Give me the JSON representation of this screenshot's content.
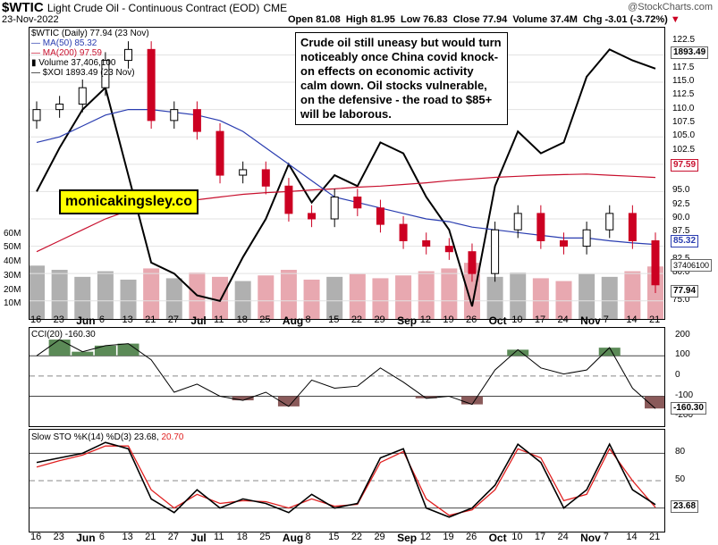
{
  "header": {
    "symbol": "$WTIC",
    "name": "Light Crude Oil - Continuous Contract (EOD)",
    "exchange": "CME",
    "date": "23-Nov-2022",
    "open": "Open 81.08",
    "high": "High 81.95",
    "low": "Low 76.83",
    "close": "Close 77.94",
    "volume": "Volume 37.4M",
    "chg": "Chg -3.01 (-3.72%)",
    "brand": "@StockCharts.com"
  },
  "legend": {
    "line1": "$WTIC (Daily) 77.94 (23 Nov)",
    "ma50": "MA(50) 85.32",
    "ma200": "MA(200) 97.59",
    "volume": "Volume 37,406,100",
    "xoi": "$XOI 1893.49 (23 Nov)"
  },
  "annotation": "Crude oil still uneasy but would turn noticeably once China covid knock-on effects on economic activity calm down. Oil stocks vulnerable, on the defensive - the road to $85+ will be laborous.",
  "watermark": "monicakingsley.co",
  "tags": {
    "xoi": "1893.49",
    "ma200": "97.59",
    "ma50": "85.32",
    "vol": "37406100",
    "close": "77.94",
    "cci": "-160.30",
    "sto": "23.68"
  },
  "price_axis": [
    "122.5",
    "117.5",
    "115.0",
    "112.5",
    "110.0",
    "107.5",
    "105.0",
    "102.5",
    "100.0",
    "95.0",
    "92.5",
    "90.0",
    "87.5",
    "82.5",
    "80.0",
    "75.0"
  ],
  "volume_axis": [
    "60M",
    "50M",
    "40M",
    "30M",
    "20M",
    "10M"
  ],
  "cci_axis": [
    "200",
    "100",
    "0",
    "-100",
    "-200"
  ],
  "sto_axis": [
    "80",
    "50",
    "20"
  ],
  "cci_label": "CCI(20) -160.30",
  "sto_label_a": "Slow STO %K(14) %D(3) 23.68,",
  "sto_label_b": "20.70",
  "x_labels": [
    "16",
    "23",
    "Jun",
    "6",
    "13",
    "21",
    "27",
    "Jul",
    "11",
    "18",
    "25",
    "Aug",
    "8",
    "15",
    "22",
    "29",
    "Sep",
    "12",
    "19",
    "26",
    "Oct",
    "10",
    "17",
    "24",
    "Nov",
    "7",
    "14",
    "21"
  ],
  "colors": {
    "up": "#000000",
    "down": "#cc0022",
    "ma50": "#2a3db0",
    "ma200": "#c8102e",
    "xoi": "#000000",
    "volume_up": "#b0b0b0",
    "volume_down": "#e8a8b0",
    "cci_pos": "#5b8a57",
    "cci_neg": "#8a5a5a",
    "sto_k": "#000000",
    "sto_d": "#e02020"
  },
  "chart_data": [
    {
      "type": "line",
      "title": "$WTIC (Daily)",
      "x": [
        "16",
        "23",
        "Jun",
        "6",
        "13",
        "21",
        "27",
        "Jul",
        "11",
        "18",
        "25",
        "Aug",
        "8",
        "15",
        "22",
        "29",
        "Sep",
        "12",
        "19",
        "26",
        "Oct",
        "10",
        "17",
        "24",
        "Nov",
        "7",
        "14",
        "21"
      ],
      "ylim": [
        73,
        124
      ],
      "series": [
        {
          "name": "$WTIC",
          "values": [
            110,
            111,
            114,
            119,
            121,
            108,
            110,
            106,
            98,
            99,
            96,
            91,
            90,
            94,
            92,
            89,
            86,
            85,
            84,
            80,
            88,
            91,
            86,
            85,
            88,
            91,
            86,
            77.94
          ]
        },
        {
          "name": "MA(50)",
          "values": [
            104,
            105,
            107,
            109,
            110,
            110,
            109.5,
            109,
            108,
            106,
            103,
            100,
            97,
            94,
            93,
            92,
            91,
            90,
            89.5,
            88.5,
            88,
            87.5,
            87,
            86.5,
            86.5,
            86,
            85.6,
            85.32
          ]
        },
        {
          "name": "MA(200)",
          "values": [
            84,
            86,
            88,
            90,
            91.5,
            92.5,
            93,
            93.5,
            94,
            94.5,
            94.8,
            95,
            95.3,
            95.5,
            95.8,
            96,
            96.3,
            96.6,
            97,
            97.3,
            97.6,
            97.8,
            98,
            98.1,
            98.2,
            98,
            97.8,
            97.59
          ]
        },
        {
          "name": "$XOI",
          "values": [
            95,
            103,
            110,
            114,
            98,
            82,
            80,
            76,
            75,
            83,
            90,
            100,
            93,
            98,
            96,
            104,
            102,
            94,
            88,
            74,
            96,
            106,
            102,
            104,
            116,
            121,
            119,
            117.5
          ]
        }
      ]
    },
    {
      "type": "bar",
      "title": "Volume",
      "ylim": [
        0,
        70
      ],
      "values": [
        38,
        35,
        30,
        34,
        28,
        36,
        29,
        33,
        30,
        27,
        31,
        35,
        28,
        30,
        32,
        29,
        31,
        34,
        36,
        40,
        30,
        33,
        29,
        27,
        32,
        30,
        34,
        37.4
      ]
    },
    {
      "type": "line",
      "title": "CCI(20)",
      "ylim": [
        -230,
        220
      ],
      "values": [
        100,
        180,
        120,
        150,
        160,
        80,
        -80,
        -40,
        -100,
        -120,
        -80,
        -150,
        -20,
        -60,
        -50,
        40,
        -30,
        -110,
        -100,
        -140,
        30,
        130,
        40,
        10,
        30,
        140,
        -60,
        -160.3
      ]
    },
    {
      "type": "line",
      "title": "Slow STO %K(14) %D(3)",
      "ylim": [
        0,
        100
      ],
      "series": [
        {
          "name": "%K",
          "values": [
            70,
            75,
            80,
            92,
            85,
            30,
            15,
            40,
            20,
            30,
            25,
            15,
            35,
            20,
            25,
            75,
            85,
            20,
            10,
            20,
            45,
            90,
            70,
            20,
            40,
            90,
            40,
            23.68
          ]
        },
        {
          "name": "%D",
          "values": [
            65,
            72,
            78,
            88,
            88,
            40,
            20,
            35,
            25,
            28,
            27,
            20,
            30,
            22,
            24,
            70,
            82,
            30,
            12,
            18,
            40,
            85,
            75,
            28,
            35,
            85,
            50,
            20.7
          ]
        }
      ]
    }
  ]
}
